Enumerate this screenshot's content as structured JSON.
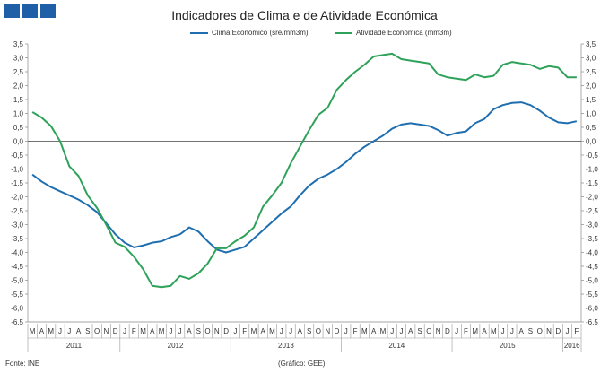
{
  "title": "Indicadores de Clima e de Atividade Económica",
  "footer": {
    "source": "Fonte: INE",
    "chart_credit": "(Gráfico: GEE)"
  },
  "chart_data": {
    "type": "line",
    "title": "Indicadores de Clima e de Atividade Económica",
    "xlabel": "",
    "ylabel": "",
    "ylim": [
      -6.5,
      3.5
    ],
    "grid": false,
    "legend_position": "top-center",
    "y_ticks": [
      "3,5",
      "3,0",
      "2,5",
      "2,0",
      "1,5",
      "1,0",
      "0,5",
      "0,0",
      "-0,5",
      "-1,0",
      "-1,5",
      "-2,0",
      "-2,5",
      "-3,0",
      "-3,5",
      "-4,0",
      "-4,5",
      "-5,0",
      "-5,5",
      "-6,0",
      "-6,5"
    ],
    "categories": [
      "M",
      "A",
      "M",
      "J",
      "J",
      "A",
      "S",
      "O",
      "N",
      "D",
      "J",
      "F",
      "M",
      "A",
      "M",
      "J",
      "J",
      "A",
      "S",
      "O",
      "N",
      "D",
      "J",
      "F",
      "M",
      "A",
      "M",
      "J",
      "J",
      "A",
      "S",
      "O",
      "N",
      "D",
      "J",
      "F",
      "M",
      "A",
      "M",
      "J",
      "J",
      "A",
      "S",
      "O",
      "N",
      "D",
      "J",
      "F",
      "M",
      "A",
      "M",
      "J",
      "J",
      "A",
      "S",
      "O",
      "N",
      "D",
      "J",
      "F"
    ],
    "years": [
      {
        "label": "2011",
        "start": 0,
        "end": 10
      },
      {
        "label": "2012",
        "start": 10,
        "end": 22
      },
      {
        "label": "2013",
        "start": 22,
        "end": 34
      },
      {
        "label": "2014",
        "start": 34,
        "end": 46
      },
      {
        "label": "2015",
        "start": 46,
        "end": 58
      },
      {
        "label": "2016",
        "start": 58,
        "end": 60
      }
    ],
    "series": [
      {
        "name": "Clima Económico (sre/mm3m)",
        "color": "#1f6fb0",
        "values": [
          -1.2,
          -1.45,
          -1.65,
          -1.8,
          -1.95,
          -2.1,
          -2.3,
          -2.55,
          -2.95,
          -3.35,
          -3.65,
          -3.82,
          -3.75,
          -3.65,
          -3.6,
          -3.45,
          -3.35,
          -3.1,
          -3.25,
          -3.6,
          -3.9,
          -4.0,
          -3.9,
          -3.8,
          -3.5,
          -3.2,
          -2.9,
          -2.6,
          -2.35,
          -1.95,
          -1.6,
          -1.35,
          -1.2,
          -1.0,
          -0.75,
          -0.45,
          -0.2,
          0.0,
          0.2,
          0.45,
          0.6,
          0.65,
          0.6,
          0.55,
          0.4,
          0.2,
          0.3,
          0.35,
          0.65,
          0.8,
          1.15,
          1.3,
          1.38,
          1.4,
          1.3,
          1.1,
          0.85,
          0.68,
          0.65,
          0.72
        ]
      },
      {
        "name": "Atividade Económica (mm3m)",
        "color": "#2ea25a",
        "values": [
          1.05,
          0.85,
          0.55,
          0.0,
          -0.9,
          -1.25,
          -1.95,
          -2.4,
          -3.0,
          -3.65,
          -3.8,
          -4.15,
          -4.6,
          -5.2,
          -5.25,
          -5.2,
          -4.85,
          -4.95,
          -4.75,
          -4.4,
          -3.85,
          -3.85,
          -3.6,
          -3.4,
          -3.1,
          -2.35,
          -1.95,
          -1.5,
          -0.8,
          -0.2,
          0.4,
          0.95,
          1.2,
          1.85,
          2.2,
          2.5,
          2.75,
          3.05,
          3.1,
          3.15,
          2.95,
          2.9,
          2.85,
          2.8,
          2.4,
          2.3,
          2.25,
          2.2,
          2.4,
          2.3,
          2.35,
          2.75,
          2.85,
          2.8,
          2.75,
          2.6,
          2.7,
          2.65,
          2.3,
          2.3
        ]
      }
    ]
  }
}
